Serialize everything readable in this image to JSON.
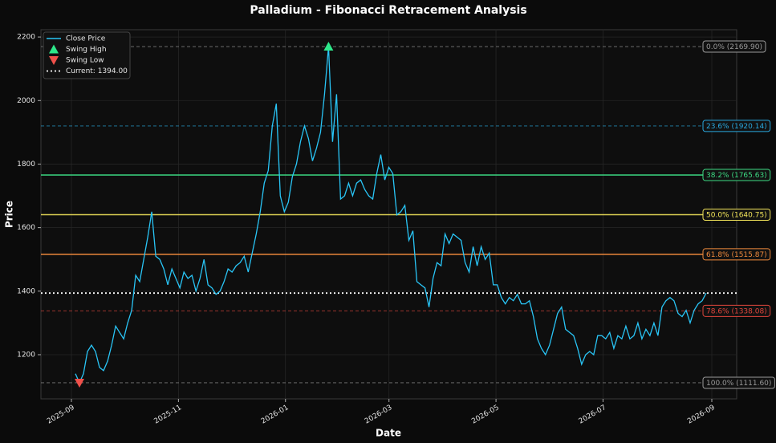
{
  "chart_data": {
    "type": "line",
    "title": "Palladium - Fibonacci Retracement Analysis",
    "x_label": "Date",
    "y_label": "Price",
    "ylim": [
      1061,
      2223
    ],
    "yticks": [
      1200,
      1400,
      1600,
      1800,
      2000,
      2200
    ],
    "xticks": [
      "2025-09",
      "2025-11",
      "2026-01",
      "2026-03",
      "2026-05",
      "2026-07",
      "2026-09"
    ],
    "grid": true,
    "legend": "upper left",
    "series": [
      {
        "name": "Close Price",
        "color": "#29c5f6",
        "values": [
          1140,
          1111.6,
          1140,
          1210,
          1230,
          1210,
          1160,
          1150,
          1180,
          1230,
          1290,
          1270,
          1250,
          1300,
          1340,
          1450,
          1430,
          1500,
          1570,
          1650,
          1510,
          1500,
          1470,
          1420,
          1470,
          1440,
          1410,
          1460,
          1440,
          1450,
          1400,
          1440,
          1500,
          1420,
          1410,
          1390,
          1400,
          1430,
          1470,
          1460,
          1480,
          1490,
          1510,
          1460,
          1520,
          1580,
          1650,
          1740,
          1780,
          1920,
          1990,
          1700,
          1650,
          1680,
          1760,
          1800,
          1870,
          1920,
          1880,
          1810,
          1850,
          1900,
          2020,
          2169.9,
          1870,
          2020,
          1690,
          1700,
          1740,
          1700,
          1740,
          1750,
          1720,
          1700,
          1690,
          1770,
          1830,
          1750,
          1790,
          1770,
          1640,
          1650,
          1670,
          1560,
          1590,
          1430,
          1420,
          1410,
          1350,
          1440,
          1490,
          1480,
          1580,
          1550,
          1580,
          1570,
          1560,
          1490,
          1460,
          1540,
          1480,
          1540,
          1500,
          1520,
          1420,
          1420,
          1380,
          1360,
          1380,
          1370,
          1390,
          1360,
          1360,
          1370,
          1320,
          1250,
          1220,
          1200,
          1230,
          1280,
          1330,
          1350,
          1280,
          1270,
          1260,
          1220,
          1170,
          1200,
          1210,
          1200,
          1260,
          1260,
          1250,
          1270,
          1220,
          1260,
          1250,
          1290,
          1250,
          1260,
          1300,
          1250,
          1280,
          1260,
          1300,
          1260,
          1350,
          1370,
          1380,
          1370,
          1330,
          1320,
          1340,
          1300,
          1340,
          1360,
          1370,
          1394
        ]
      }
    ],
    "swing_high": {
      "name": "Swing High",
      "value": 2169.9,
      "color": "#2ee88a"
    },
    "swing_low": {
      "name": "Swing Low",
      "value": 1111.6,
      "color": "#f0504a"
    },
    "current": {
      "name": "Current: 1394.00",
      "value": 1394,
      "color": "#ffffff"
    },
    "levels": [
      {
        "label": "0.0% (2169.90)",
        "value": 2169.9,
        "color": "#9a9a9a",
        "style": "dashed"
      },
      {
        "label": "23.6% (1920.14)",
        "value": 1920.14,
        "color": "#29a9e0",
        "style": "dashed"
      },
      {
        "label": "38.2% (1765.63)",
        "value": 1765.63,
        "color": "#3ddc84",
        "style": "solid"
      },
      {
        "label": "50.0% (1640.75)",
        "value": 1640.75,
        "color": "#f2e45a",
        "style": "solid"
      },
      {
        "label": "61.8% (1515.87)",
        "value": 1515.87,
        "color": "#f08a3c",
        "style": "solid"
      },
      {
        "label": "78.6% (1338.08)",
        "value": 1338.08,
        "color": "#e0463c",
        "style": "dashed"
      },
      {
        "label": "100.0% (1111.60)",
        "value": 1111.6,
        "color": "#9a9a9a",
        "style": "dashed"
      }
    ]
  }
}
